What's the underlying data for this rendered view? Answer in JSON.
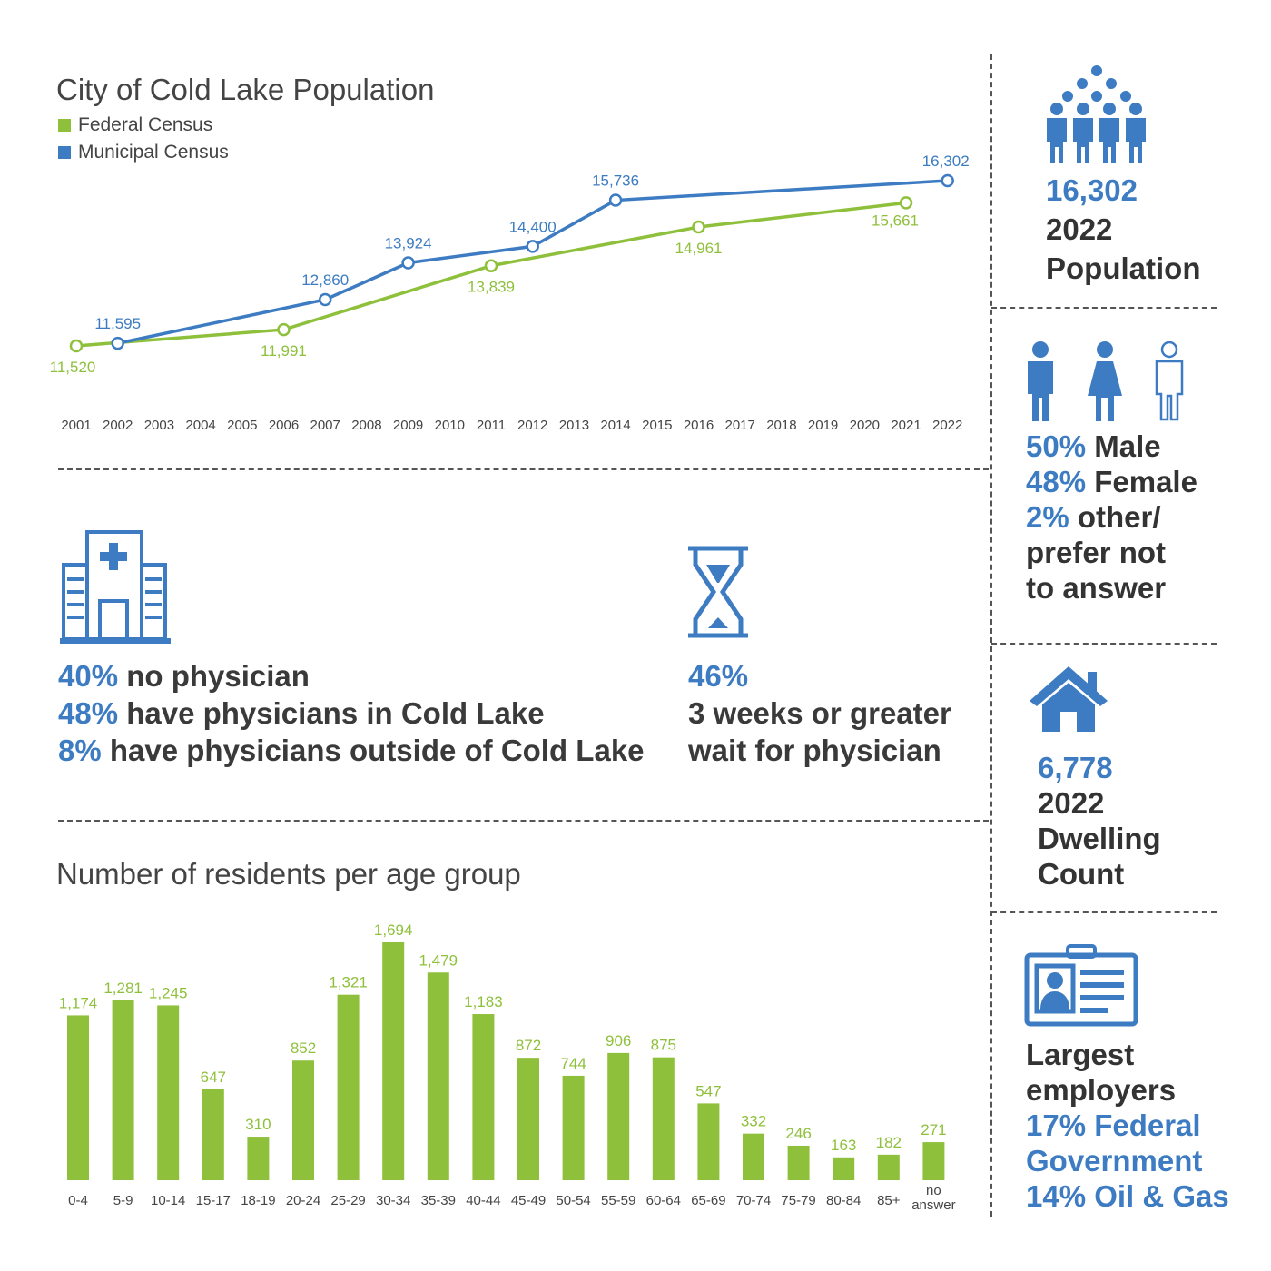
{
  "line_chart": {
    "title": "City of Cold Lake Population",
    "legend": [
      {
        "label": "Federal Census",
        "color": "#8fc03c"
      },
      {
        "label": "Municipal Census",
        "color": "#3d7cc2"
      }
    ]
  },
  "physicians": {
    "lines": [
      {
        "pct": "40%",
        "text": " no physician"
      },
      {
        "pct": "48%",
        "text": " have physicians in Cold Lake"
      },
      {
        "pct": "8%",
        "text": " have physicians outside of Cold Lake"
      }
    ],
    "wait_pct": "46%",
    "wait_text_1": "3 weeks or greater",
    "wait_text_2": "wait for physician",
    "icons": [
      "hospital-icon",
      "hourglass-icon"
    ]
  },
  "bar_chart": {
    "title": "Number of residents per age group"
  },
  "sidebar": {
    "population": {
      "value": "16,302",
      "line1": "2022",
      "line2": "Population",
      "icon": "people-group-icon"
    },
    "gender": {
      "icons": [
        "male-icon",
        "female-icon",
        "person-outline-icon"
      ],
      "lines": [
        {
          "pct": "50%",
          "text": " Male"
        },
        {
          "pct": "48%",
          "text": " Female"
        },
        {
          "pct": "2%",
          "text": " other/"
        }
      ],
      "line4": "prefer not",
      "line5": "to answer"
    },
    "dwelling": {
      "value": "6,778",
      "line1": "2022",
      "line2": "Dwelling",
      "line3": "Count",
      "icon": "house-icon"
    },
    "employers": {
      "icon": "id-card-icon",
      "line1": "Largest",
      "line2": "employers",
      "line3": "17% Federal",
      "line4": "Government",
      "line5": "14% Oil & Gas"
    }
  },
  "colors": {
    "accent_blue": "#3d7cc2",
    "accent_green": "#8fc03c"
  },
  "chart_data": [
    {
      "type": "line",
      "title": "City of Cold Lake Population",
      "x_ticks": [
        "2001",
        "2002",
        "2003",
        "2004",
        "2005",
        "2006",
        "2007",
        "2008",
        "2009",
        "2010",
        "2011",
        "2012",
        "2013",
        "2014",
        "2015",
        "2016",
        "2017",
        "2018",
        "2019",
        "2020",
        "2021",
        "2022"
      ],
      "series": [
        {
          "name": "Federal Census",
          "color": "#8fc03c",
          "points": [
            {
              "x": 2001,
              "y": 11520,
              "label": "11,520"
            },
            {
              "x": 2006,
              "y": 11991,
              "label": "11,991"
            },
            {
              "x": 2011,
              "y": 13839,
              "label": "13,839"
            },
            {
              "x": 2016,
              "y": 14961,
              "label": "14,961"
            },
            {
              "x": 2021,
              "y": 15661,
              "label": "15,661"
            }
          ]
        },
        {
          "name": "Municipal Census",
          "color": "#3d7cc2",
          "points": [
            {
              "x": 2002,
              "y": 11595,
              "label": "11,595"
            },
            {
              "x": 2007,
              "y": 12860,
              "label": "12,860"
            },
            {
              "x": 2009,
              "y": 13924,
              "label": "13,924"
            },
            {
              "x": 2012,
              "y": 14400,
              "label": "14,400"
            },
            {
              "x": 2014,
              "y": 15736,
              "label": "15,736"
            },
            {
              "x": 2022,
              "y": 16302,
              "label": "16,302"
            }
          ]
        }
      ],
      "legend": "top-left",
      "grid": false
    },
    {
      "type": "bar",
      "title": "Number of residents per age group",
      "color": "#8fc03c",
      "categories": [
        "0-4",
        "5-9",
        "10-14",
        "15-17",
        "18-19",
        "20-24",
        "25-29",
        "30-34",
        "35-39",
        "40-44",
        "45-49",
        "50-54",
        "55-59",
        "60-64",
        "65-69",
        "70-74",
        "75-79",
        "80-84",
        "85+",
        "no answer"
      ],
      "values": [
        1174,
        1281,
        1245,
        647,
        310,
        852,
        1321,
        1694,
        1479,
        1183,
        872,
        744,
        906,
        875,
        547,
        332,
        246,
        163,
        182,
        271
      ],
      "value_labels": [
        "1,174",
        "1,281",
        "1,245",
        "647",
        "310",
        "852",
        "1,321",
        "1,694",
        "1,479",
        "1,183",
        "872",
        "744",
        "906",
        "875",
        "547",
        "332",
        "246",
        "163",
        "182",
        "271"
      ],
      "grid": false
    }
  ]
}
